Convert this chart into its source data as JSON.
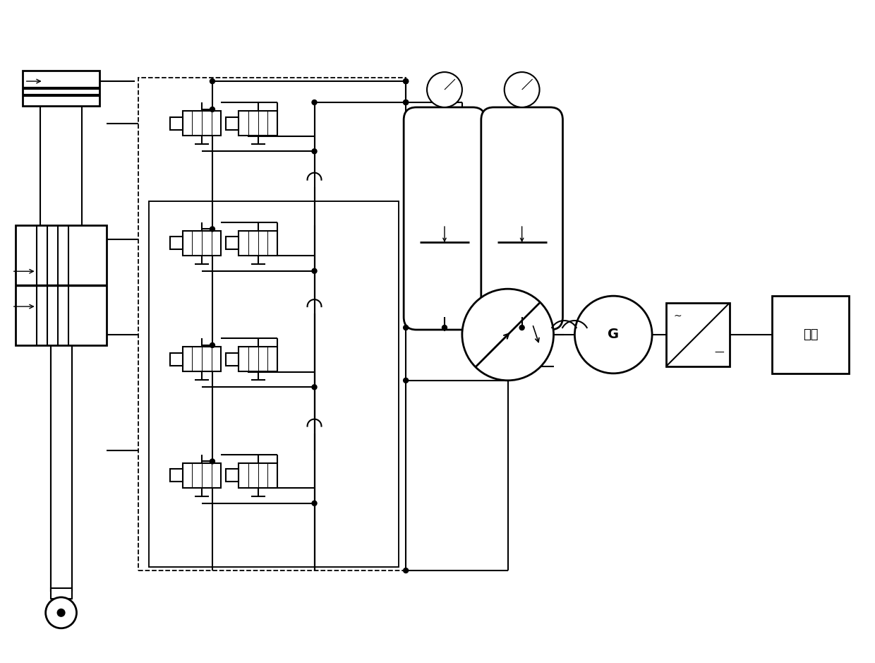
{
  "bg_color": "#ffffff",
  "lc": "#000000",
  "lw": 1.5,
  "lw2": 2.0,
  "dlw": 1.3,
  "figsize": [
    12.4,
    9.39
  ],
  "dpi": 100
}
